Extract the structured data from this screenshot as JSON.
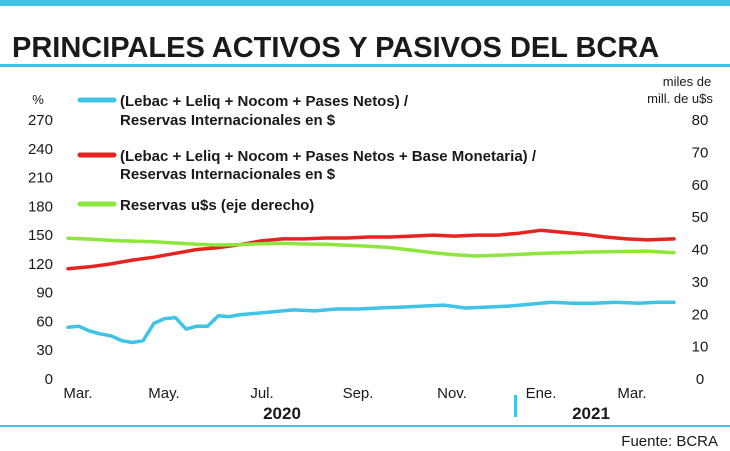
{
  "chart_data": {
    "type": "line",
    "title": "PRINCIPALES ACTIVOS Y PASIVOS DEL BCRA",
    "y_left_unit": "%",
    "y_right_unit": [
      "miles de",
      "mill. de u$s"
    ],
    "y_left_ticks": [
      0,
      30,
      60,
      90,
      120,
      150,
      180,
      210,
      240,
      270
    ],
    "y_right_ticks": [
      0,
      10,
      20,
      30,
      40,
      50,
      60,
      70,
      80
    ],
    "ylim_left": [
      0,
      270
    ],
    "ylim_right": [
      0,
      80
    ],
    "x_tick_labels": [
      "Mar.",
      "May.",
      "Jul.",
      "Sep.",
      "Nov.",
      "Ene.",
      "Mar."
    ],
    "year_labels": [
      "2020",
      "2021"
    ],
    "source": "Fuente: BCRA",
    "grid": false,
    "legend_position": "top-left",
    "series": [
      {
        "name": [
          "(Lebac + Leliq + Nocom + Pases Netos) /",
          "Reservas Internacionales en $"
        ],
        "axis": "left",
        "color": "#3fc3e6",
        "x": [
          "2020-03-01",
          "2020-03-08",
          "2020-03-15",
          "2020-03-22",
          "2020-03-29",
          "2020-04-05",
          "2020-04-12",
          "2020-04-19",
          "2020-04-26",
          "2020-05-03",
          "2020-05-10",
          "2020-05-17",
          "2020-05-24",
          "2020-05-31",
          "2020-06-07",
          "2020-06-14",
          "2020-06-21",
          "2020-06-28",
          "2020-07-12",
          "2020-07-26",
          "2020-08-09",
          "2020-08-23",
          "2020-09-06",
          "2020-09-20",
          "2020-10-04",
          "2020-10-18",
          "2020-11-01",
          "2020-11-15",
          "2020-11-29",
          "2020-12-13",
          "2020-12-27",
          "2021-01-10",
          "2021-01-24",
          "2021-02-07",
          "2021-02-21",
          "2021-03-07",
          "2021-03-21",
          "2021-03-31"
        ],
        "values": [
          54,
          55,
          50,
          47,
          45,
          40,
          38,
          40,
          58,
          63,
          64,
          52,
          55,
          55,
          66,
          65,
          67,
          68,
          70,
          72,
          71,
          73,
          73,
          74,
          75,
          76,
          77,
          74,
          75,
          76,
          78,
          80,
          79,
          79,
          80,
          79,
          80,
          80
        ]
      },
      {
        "name": [
          "(Lebac + Leliq + Nocom + Pases Netos + Base Monetaria) /",
          "Reservas Internacionales en $"
        ],
        "axis": "left",
        "color": "#e52421",
        "x": [
          "2020-03-01",
          "2020-03-15",
          "2020-03-29",
          "2020-04-12",
          "2020-04-26",
          "2020-05-10",
          "2020-05-24",
          "2020-06-07",
          "2020-06-21",
          "2020-07-05",
          "2020-07-19",
          "2020-08-02",
          "2020-08-16",
          "2020-08-30",
          "2020-09-13",
          "2020-09-27",
          "2020-10-11",
          "2020-10-25",
          "2020-11-08",
          "2020-11-22",
          "2020-12-06",
          "2020-12-20",
          "2021-01-03",
          "2021-01-17",
          "2021-01-31",
          "2021-02-14",
          "2021-02-28",
          "2021-03-14",
          "2021-03-31"
        ],
        "values": [
          115,
          117,
          120,
          124,
          127,
          131,
          135,
          137,
          140,
          144,
          146,
          146,
          147,
          147,
          148,
          148,
          149,
          150,
          149,
          150,
          150,
          152,
          155,
          153,
          151,
          148,
          146,
          145,
          146
        ]
      },
      {
        "name": "Reservas u$s (eje derecho)",
        "axis": "right",
        "color": "#8de63c",
        "x": [
          "2020-03-01",
          "2020-03-15",
          "2020-03-29",
          "2020-04-12",
          "2020-04-26",
          "2020-05-10",
          "2020-05-24",
          "2020-06-07",
          "2020-06-21",
          "2020-07-05",
          "2020-07-19",
          "2020-08-02",
          "2020-08-16",
          "2020-08-30",
          "2020-09-13",
          "2020-09-27",
          "2020-10-11",
          "2020-10-25",
          "2020-11-08",
          "2020-11-22",
          "2020-12-06",
          "2020-12-20",
          "2021-01-03",
          "2021-01-17",
          "2021-01-31",
          "2021-02-14",
          "2021-02-28",
          "2021-03-14",
          "2021-03-31"
        ],
        "values": [
          43.5,
          43.2,
          42.8,
          42.6,
          42.4,
          42.0,
          41.6,
          41.4,
          41.5,
          41.8,
          41.9,
          41.7,
          41.6,
          41.3,
          41.0,
          40.6,
          39.8,
          39.0,
          38.4,
          38.0,
          38.2,
          38.5,
          38.8,
          39.0,
          39.2,
          39.3,
          39.4,
          39.5,
          39.0
        ]
      }
    ]
  }
}
